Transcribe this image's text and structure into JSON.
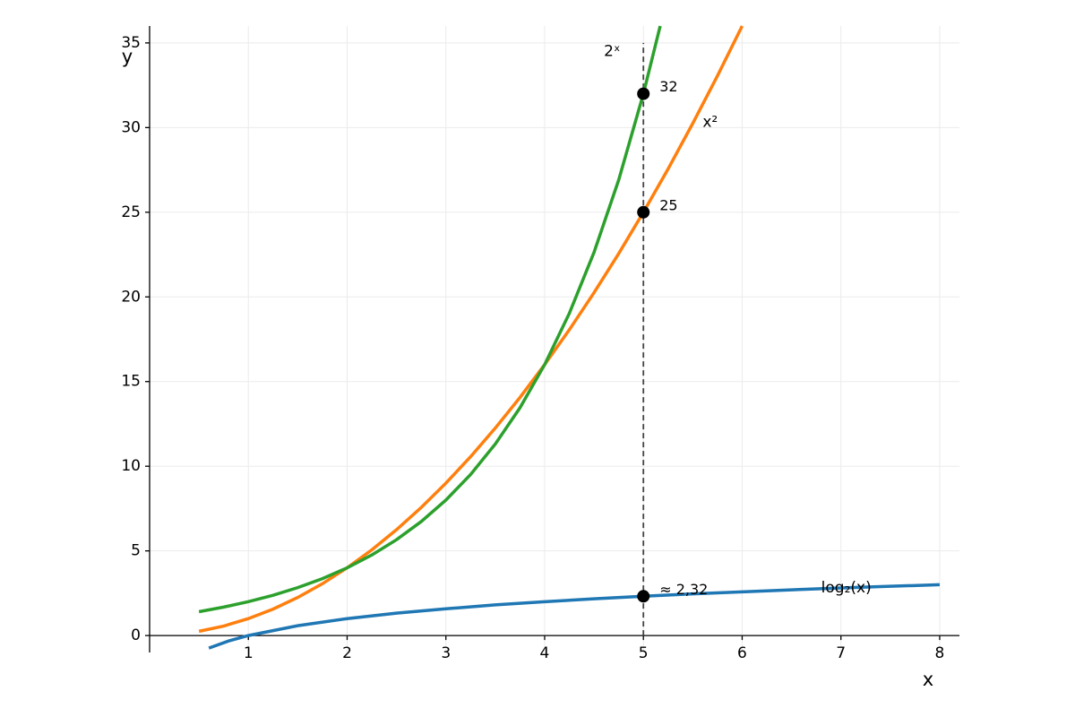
{
  "chart_data": {
    "type": "line",
    "x_label": "x",
    "y_label": "y",
    "xlim": [
      0,
      8.2
    ],
    "ylim": [
      -1,
      36
    ],
    "xticks": [
      1,
      2,
      3,
      4,
      5,
      6,
      7,
      8
    ],
    "yticks": [
      0,
      5,
      10,
      15,
      20,
      25,
      30,
      35
    ],
    "grid": true,
    "series": [
      {
        "name": "log₂(x)",
        "color": "#1f77b4",
        "x": [
          0.6,
          0.8,
          1,
          1.5,
          2,
          2.5,
          3,
          3.5,
          4,
          4.5,
          5,
          5.5,
          6,
          6.5,
          7,
          7.5,
          8
        ],
        "values": [
          -0.74,
          -0.32,
          0,
          0.58,
          1,
          1.32,
          1.58,
          1.81,
          2,
          2.17,
          2.32,
          2.46,
          2.58,
          2.7,
          2.81,
          2.91,
          3
        ]
      },
      {
        "name": "x²",
        "color": "#ff7f0e",
        "x": [
          0.5,
          0.75,
          1,
          1.25,
          1.5,
          1.75,
          2,
          2.25,
          2.5,
          2.75,
          3,
          3.25,
          3.5,
          3.75,
          4,
          4.25,
          4.5,
          4.75,
          5,
          5.25,
          5.5,
          5.75,
          6
        ],
        "values": [
          0.25,
          0.56,
          1,
          1.56,
          2.25,
          3.06,
          4,
          5.06,
          6.25,
          7.56,
          9,
          10.56,
          12.25,
          14.06,
          16,
          18.06,
          20.25,
          22.56,
          25,
          27.56,
          30.25,
          33.06,
          36
        ]
      },
      {
        "name": "2ˣ",
        "color": "#2ca02c",
        "x": [
          0.5,
          0.75,
          1,
          1.25,
          1.5,
          1.75,
          2,
          2.25,
          2.5,
          2.75,
          3,
          3.25,
          3.5,
          3.75,
          4,
          4.25,
          4.5,
          4.75,
          5,
          5.17
        ],
        "values": [
          1.41,
          1.68,
          2,
          2.38,
          2.83,
          3.36,
          4,
          4.76,
          5.66,
          6.73,
          8,
          9.51,
          11.31,
          13.45,
          16,
          19.03,
          22.63,
          26.91,
          32,
          36
        ]
      }
    ],
    "vline": 5,
    "points": [
      {
        "x": 5,
        "y": 32,
        "label": "32"
      },
      {
        "x": 5,
        "y": 25,
        "label": "25"
      },
      {
        "x": 5,
        "y": 2.32,
        "label": "≈ 2,32"
      }
    ]
  }
}
